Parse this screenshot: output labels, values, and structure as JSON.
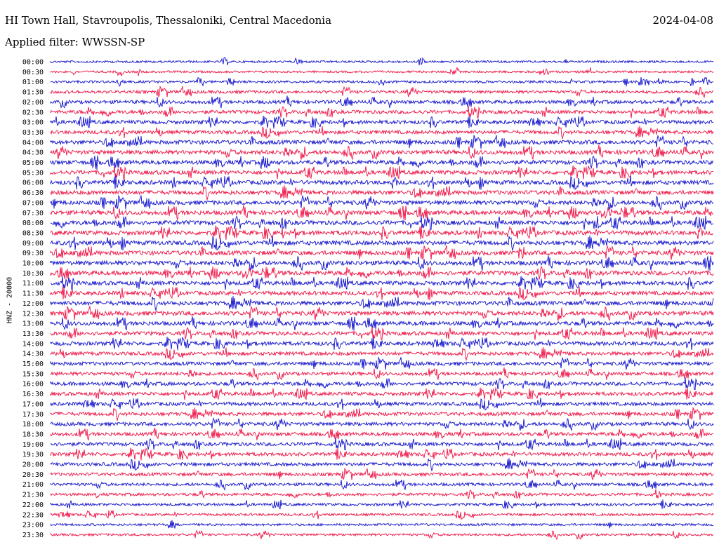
{
  "header": {
    "station": "HI Town Hall, Stavroupolis, Thessaloniki, Central Macedonia",
    "date": "2024-04-08",
    "filter": "Applied filter: WWSSN-SP"
  },
  "colors": {
    "even": "#1010cc",
    "odd": "#ee1144"
  },
  "chart_data": {
    "type": "line",
    "title": "HI Town Hall, Stavroupolis, Thessaloniki, Central Macedonia",
    "ylabel": "HNZ - 20000",
    "xlabel": "",
    "grid": false,
    "rows": [
      "00:00",
      "00:30",
      "01:00",
      "01:30",
      "02:00",
      "02:30",
      "03:00",
      "03:30",
      "04:00",
      "04:30",
      "05:00",
      "05:30",
      "06:00",
      "06:30",
      "07:00",
      "07:30",
      "08:00",
      "08:30",
      "09:00",
      "09:30",
      "10:00",
      "10:30",
      "11:00",
      "11:30",
      "12:00",
      "12:30",
      "13:00",
      "13:30",
      "14:00",
      "14:30",
      "15:00",
      "15:30",
      "16:00",
      "16:30",
      "17:00",
      "17:30",
      "18:00",
      "18:30",
      "19:00",
      "19:30",
      "20:00",
      "20:30",
      "21:00",
      "21:30",
      "22:00",
      "22:30",
      "23:00",
      "23:30"
    ],
    "activity": [
      0.15,
      0.15,
      0.25,
      0.4,
      0.55,
      0.6,
      0.65,
      0.6,
      0.75,
      0.8,
      0.8,
      0.75,
      0.8,
      0.8,
      0.8,
      0.85,
      0.85,
      0.85,
      0.85,
      0.85,
      0.85,
      0.85,
      0.75,
      0.75,
      0.8,
      0.8,
      0.75,
      0.7,
      0.7,
      0.6,
      0.6,
      0.55,
      0.6,
      0.6,
      0.6,
      0.6,
      0.6,
      0.6,
      0.6,
      0.6,
      0.55,
      0.5,
      0.4,
      0.35,
      0.3,
      0.25,
      0.2,
      0.2
    ],
    "series": [
      {
        "name": "HNZ",
        "color_even": "#1010cc",
        "color_odd": "#ee1144"
      }
    ]
  }
}
